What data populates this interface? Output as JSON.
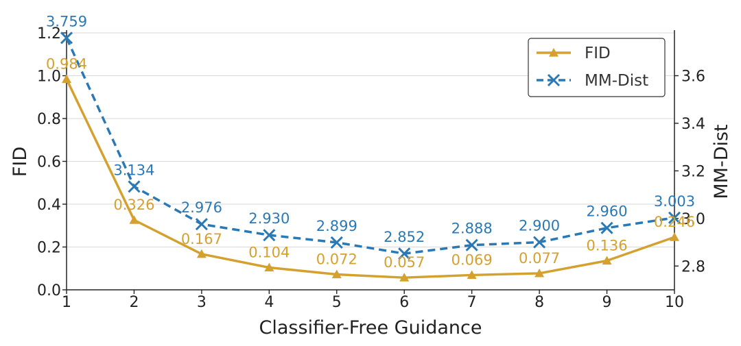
{
  "chart_data": {
    "type": "line",
    "title": "",
    "xlabel": "Classifier-Free Guidance",
    "ylabel_left": "FID",
    "ylabel_right": "MM-Dist",
    "x": [
      1,
      2,
      3,
      4,
      5,
      6,
      7,
      8,
      9,
      10
    ],
    "x_tick_labels": [
      "1",
      "2",
      "3",
      "4",
      "5",
      "6",
      "7",
      "8",
      "9",
      "10"
    ],
    "xlim": [
      1,
      10
    ],
    "ylim_left": [
      0.0,
      1.2
    ],
    "ylim_right": [
      2.7,
      3.78
    ],
    "y_ticks_left": [
      "0.0",
      "0.2",
      "0.4",
      "0.6",
      "0.8",
      "1.0",
      "1.2"
    ],
    "y_ticks_right": [
      "2.8",
      "3.0",
      "3.2",
      "3.4",
      "3.6"
    ],
    "grid": "horizontal",
    "legend_position": "top-right",
    "series": [
      {
        "name": "FID",
        "axis": "left",
        "color": "#D4A02E",
        "line_style": "solid",
        "marker": "triangle",
        "values": [
          0.984,
          0.326,
          0.167,
          0.104,
          0.072,
          0.057,
          0.069,
          0.077,
          0.136,
          0.246
        ],
        "labels": [
          "0.984",
          "0.326",
          "0.167",
          "0.104",
          "0.072",
          "0.057",
          "0.069",
          "0.077",
          "0.136",
          "0.246"
        ]
      },
      {
        "name": "MM-Dist",
        "axis": "right",
        "color": "#2A79B5",
        "line_style": "dashed",
        "marker": "x",
        "values": [
          3.759,
          3.134,
          2.976,
          2.93,
          2.899,
          2.852,
          2.888,
          2.9,
          2.96,
          3.003
        ],
        "labels": [
          "3.759",
          "3.134",
          "2.976",
          "2.930",
          "2.899",
          "2.852",
          "2.888",
          "2.900",
          "2.960",
          "3.003"
        ]
      }
    ]
  }
}
